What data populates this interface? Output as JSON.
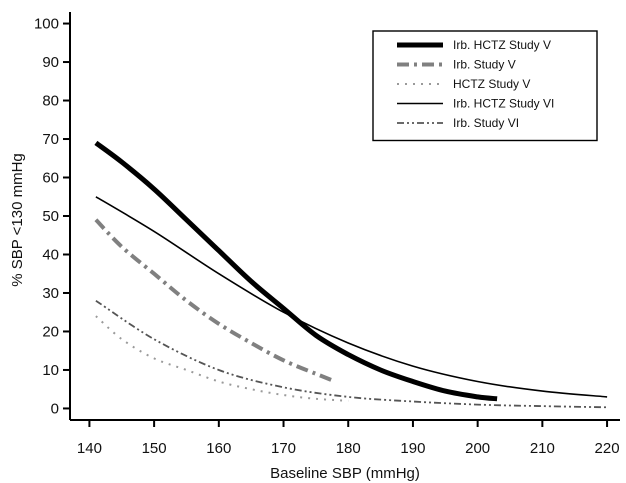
{
  "chart_data": {
    "type": "line",
    "title": "",
    "xlabel": "Baseline SBP (mmHg)",
    "ylabel": "% SBP <130 mmHg",
    "xlim": [
      137,
      222
    ],
    "ylim": [
      -3,
      103
    ],
    "xticks": [
      140,
      150,
      160,
      170,
      180,
      190,
      200,
      210,
      220
    ],
    "yticks": [
      0,
      10,
      20,
      30,
      40,
      50,
      60,
      70,
      80,
      90,
      100
    ],
    "grid": false,
    "legend_position": "top-right",
    "series": [
      {
        "name": "Irb. HCTZ Study V",
        "style": "thick-solid",
        "color": "#000000",
        "x": [
          141,
          145,
          150,
          155,
          160,
          165,
          170,
          175,
          180,
          185,
          190,
          195,
          200,
          203
        ],
        "y": [
          69,
          64,
          57,
          49,
          41,
          33,
          26,
          19,
          14,
          10,
          7,
          4.5,
          3,
          2.5
        ]
      },
      {
        "name": "Irb. Study V",
        "style": "dash-dot-gray",
        "color": "#808080",
        "x": [
          141,
          145,
          150,
          155,
          160,
          165,
          170,
          175,
          178
        ],
        "y": [
          49,
          42,
          35,
          28,
          22,
          17,
          12.5,
          9,
          7
        ]
      },
      {
        "name": "HCTZ Study V",
        "style": "dotted-gray",
        "color": "#9a9a9a",
        "x": [
          141,
          145,
          150,
          155,
          160,
          165,
          170,
          175,
          180
        ],
        "y": [
          24,
          18,
          13,
          10,
          7,
          5,
          3.5,
          2.5,
          2
        ]
      },
      {
        "name": "Irb. HCTZ Study VI",
        "style": "thin-solid",
        "color": "#000000",
        "x": [
          141,
          150,
          160,
          170,
          180,
          190,
          200,
          210,
          220
        ],
        "y": [
          55,
          46,
          35,
          25,
          17,
          11,
          7,
          4.5,
          3
        ]
      },
      {
        "name": "Irb. Study VI",
        "style": "dash-dot-dot-gray",
        "color": "#555555",
        "x": [
          141,
          150,
          160,
          170,
          180,
          190,
          200,
          210,
          220
        ],
        "y": [
          28,
          18,
          10,
          5.5,
          3,
          1.8,
          1,
          0.6,
          0.3
        ]
      }
    ]
  }
}
